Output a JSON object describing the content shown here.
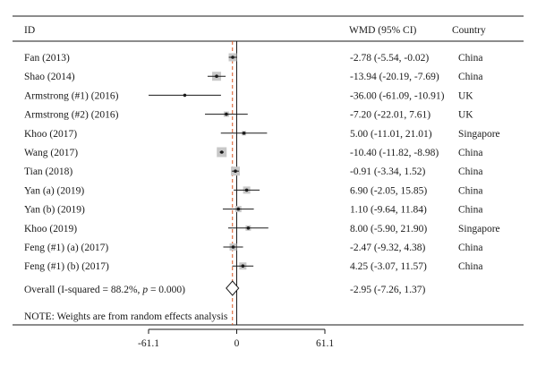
{
  "chart_data": {
    "type": "forest",
    "header": {
      "id": "ID",
      "effect": "WMD (95% CI)",
      "country": "Country"
    },
    "studies": [
      {
        "id": "Fan (2013)",
        "wmd": -2.78,
        "lo": -5.54,
        "hi": -0.02,
        "ci_text": "-2.78 (-5.54, -0.02)",
        "country": "China",
        "weight_box": 9
      },
      {
        "id": "Shao (2014)",
        "wmd": -13.94,
        "lo": -20.19,
        "hi": -7.69,
        "ci_text": "-13.94 (-20.19, -7.69)",
        "country": "China",
        "weight_box": 10
      },
      {
        "id": "Armstrong (#1) (2016)",
        "wmd": -36.0,
        "lo": -61.09,
        "hi": -10.91,
        "ci_text": "-36.00 (-61.09, -10.91)",
        "country": "UK",
        "weight_box": 2
      },
      {
        "id": "Armstrong (#2) (2016)",
        "wmd": -7.2,
        "lo": -22.01,
        "hi": 7.61,
        "ci_text": "-7.20 (-22.01, 7.61)",
        "country": "UK",
        "weight_box": 6
      },
      {
        "id": "Khoo (2017)",
        "wmd": 5.0,
        "lo": -11.01,
        "hi": 21.01,
        "ci_text": "5.00 (-11.01, 21.01)",
        "country": "Singapore",
        "weight_box": 5
      },
      {
        "id": "Wang (2017)",
        "wmd": -10.4,
        "lo": -11.82,
        "hi": -8.98,
        "ci_text": "-10.40 (-11.82, -8.98)",
        "country": "China",
        "weight_box": 11
      },
      {
        "id": "Tian (2018)",
        "wmd": -0.91,
        "lo": -3.34,
        "hi": 1.52,
        "ci_text": "-0.91 (-3.34, 1.52)",
        "country": "China",
        "weight_box": 10
      },
      {
        "id": "Yan (a) (2019)",
        "wmd": 6.9,
        "lo": -2.05,
        "hi": 15.85,
        "ci_text": "6.90 (-2.05, 15.85)",
        "country": "China",
        "weight_box": 8
      },
      {
        "id": "Yan (b) (2019)",
        "wmd": 1.1,
        "lo": -9.64,
        "hi": 11.84,
        "ci_text": "1.10 (-9.64, 11.84)",
        "country": "China",
        "weight_box": 7
      },
      {
        "id": "Khoo (2019)",
        "wmd": 8.0,
        "lo": -5.9,
        "hi": 21.9,
        "ci_text": "8.00 (-5.90, 21.90)",
        "country": "Singapore",
        "weight_box": 6
      },
      {
        "id": "Feng (#1) (a) (2017)",
        "wmd": -2.47,
        "lo": -9.32,
        "hi": 4.38,
        "ci_text": "-2.47 (-9.32, 4.38)",
        "country": "China",
        "weight_box": 8
      },
      {
        "id": "Feng (#1) (b) (2017)",
        "wmd": 4.25,
        "lo": -3.07,
        "hi": 11.57,
        "ci_text": "4.25 (-3.07, 11.57)",
        "country": "China",
        "weight_box": 8
      }
    ],
    "overall": {
      "label_prefix": "Overall (I-squared = 88.2%, ",
      "label_p_italic": "p",
      "label_suffix": " = 0.000)",
      "wmd": -2.95,
      "lo": -7.26,
      "hi": 1.37,
      "ci_text": "-2.95 (-7.26, 1.37)"
    },
    "note": "NOTE: Weights are from random effects analysis",
    "xlim": [
      -61.1,
      61.1
    ],
    "xticks": [
      {
        "value": -61.1,
        "label": "-61.1"
      },
      {
        "value": 0,
        "label": "0"
      },
      {
        "value": 61.1,
        "label": "61.1"
      }
    ],
    "colors": {
      "line": "#1a1a1a",
      "box": "#c8c8c8",
      "overall_ref": "#d9541e"
    }
  }
}
